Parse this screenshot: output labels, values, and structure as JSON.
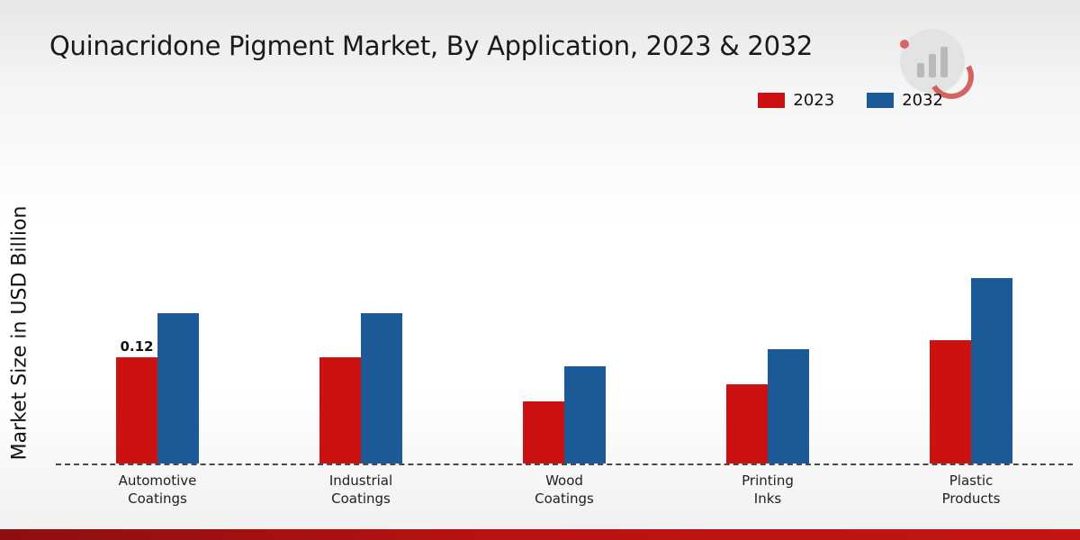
{
  "title": "Quinacridone Pigment Market, By Application, 2023 & 2032",
  "ylabel": "Market Size in USD Billion",
  "legend": {
    "items": [
      {
        "label": "2023",
        "color": "#cc1111"
      },
      {
        "label": "2032",
        "color": "#1b5a96"
      }
    ]
  },
  "chart_data": {
    "type": "bar",
    "title": "Quinacridone Pigment Market, By Application, 2023 & 2032",
    "ylabel": "Market Size in USD Billion",
    "categories": [
      "Automotive Coatings",
      "Industrial Coatings",
      "Wood Coatings",
      "Printing Inks",
      "Plastic Products"
    ],
    "series": [
      {
        "name": "2023",
        "color": "#cc1111",
        "values": [
          0.12,
          0.12,
          0.07,
          0.09,
          0.14
        ]
      },
      {
        "name": "2032",
        "color": "#1b5a96",
        "values": [
          0.17,
          0.17,
          0.11,
          0.13,
          0.21
        ]
      }
    ],
    "data_labels": [
      {
        "series": "2023",
        "category_index": 0,
        "text": "0.12"
      }
    ],
    "ylim": [
      0,
      0.25
    ],
    "grid": false,
    "baseline_style": "dashed",
    "legend_position": "top-right"
  }
}
